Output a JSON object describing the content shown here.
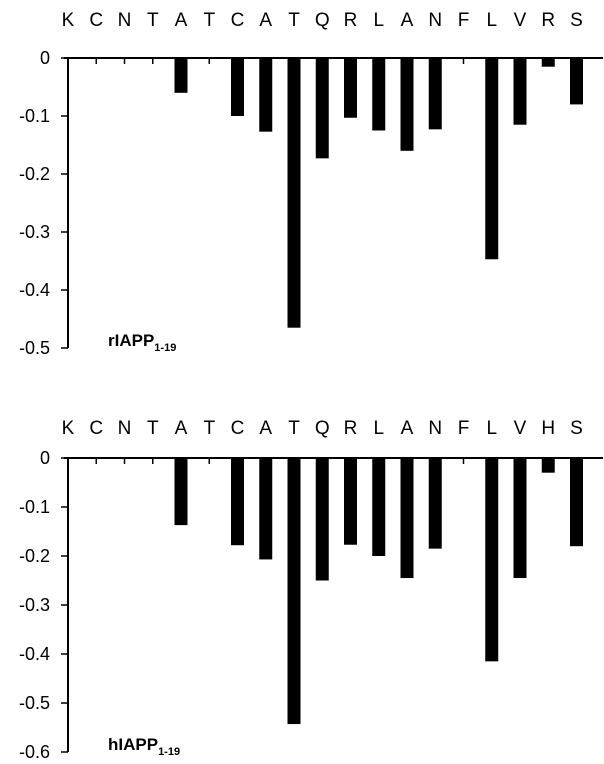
{
  "chart_data": [
    {
      "type": "bar",
      "panel_label": "rIAPP",
      "panel_label_subscript": "1-19",
      "categories": [
        "K",
        "C",
        "N",
        "T",
        "A",
        "T",
        "C",
        "A",
        "T",
        "Q",
        "R",
        "L",
        "A",
        "N",
        "F",
        "L",
        "V",
        "R",
        "S"
      ],
      "values": [
        0,
        0,
        0,
        0,
        -0.06,
        0,
        -0.1,
        -0.127,
        -0.465,
        -0.173,
        -0.103,
        -0.125,
        -0.16,
        -0.123,
        0,
        -0.347,
        -0.115,
        -0.015,
        -0.08
      ],
      "yticks": [
        "0",
        "-0.1",
        "-0.2",
        "-0.3",
        "-0.4",
        "-0.5"
      ],
      "ylim": [
        -0.5,
        0
      ],
      "grid": false,
      "xlabel": "",
      "ylabel": ""
    },
    {
      "type": "bar",
      "panel_label": "hIAPP",
      "panel_label_subscript": "1-19",
      "categories": [
        "K",
        "C",
        "N",
        "T",
        "A",
        "T",
        "C",
        "A",
        "T",
        "Q",
        "R",
        "L",
        "A",
        "N",
        "F",
        "L",
        "V",
        "H",
        "S"
      ],
      "values": [
        0,
        0,
        0,
        0,
        -0.137,
        0,
        -0.178,
        -0.207,
        -0.543,
        -0.25,
        -0.177,
        -0.2,
        -0.245,
        -0.185,
        0,
        -0.415,
        -0.245,
        -0.03,
        -0.18
      ],
      "yticks": [
        "0",
        "-0.1",
        "-0.2",
        "-0.3",
        "-0.4",
        "-0.5",
        "-0.6"
      ],
      "ylim": [
        -0.6,
        0
      ],
      "grid": false,
      "xlabel": "",
      "ylabel": ""
    }
  ]
}
